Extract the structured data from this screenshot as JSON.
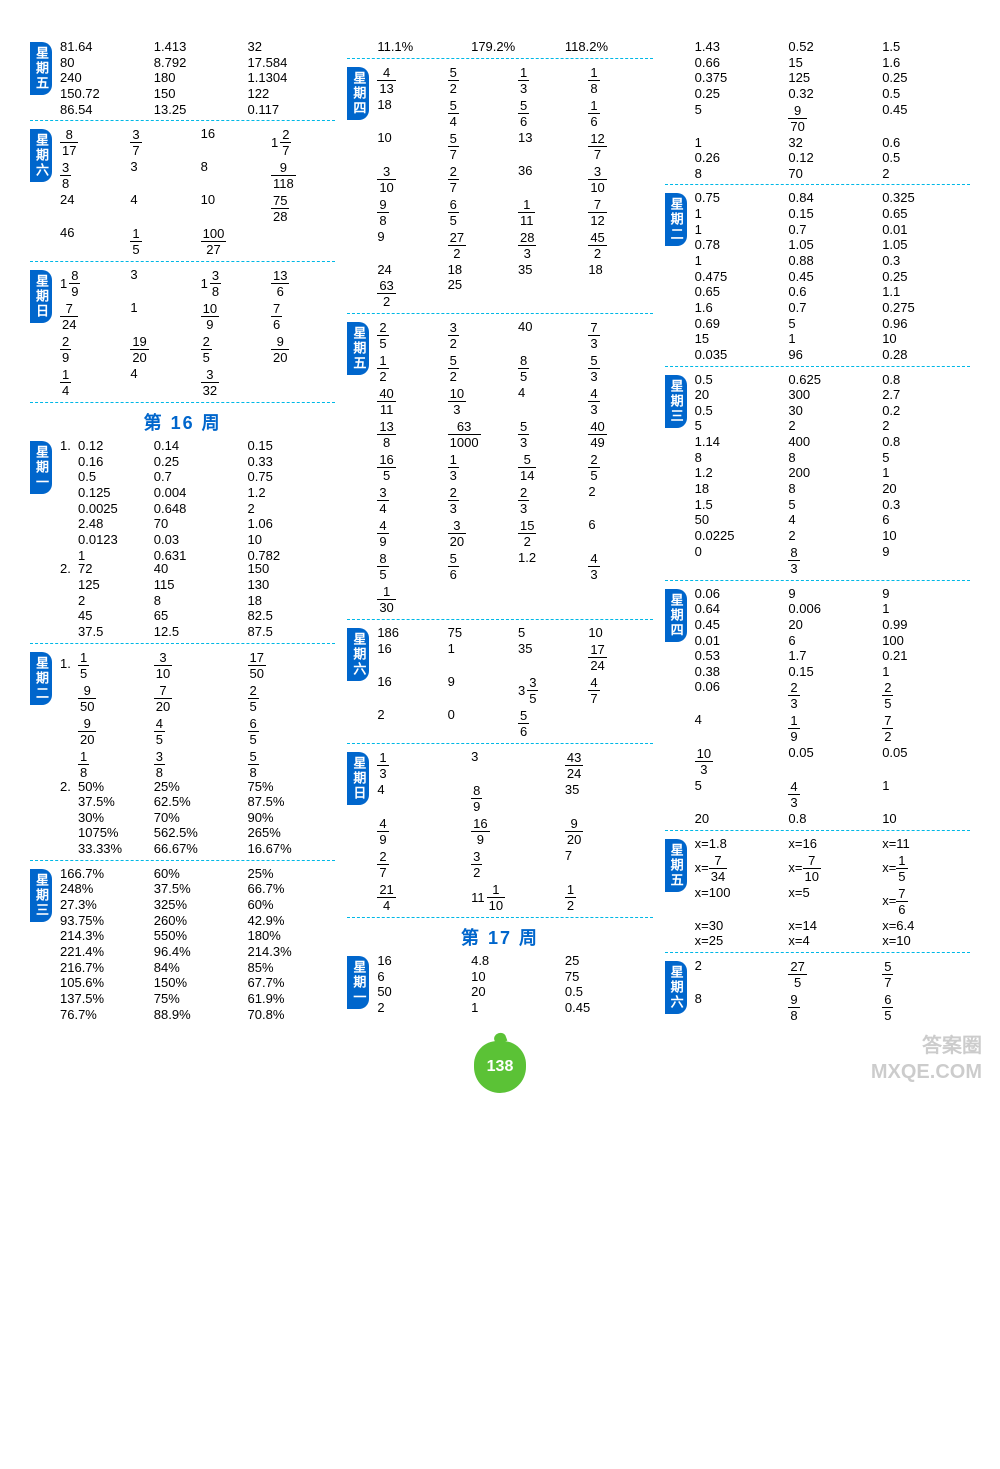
{
  "page_number": "138",
  "watermark": {
    "line1": "答案圈",
    "line2": "MXQE.COM"
  },
  "week16_title": "第 16 周",
  "week17_title": "第 17 周",
  "colors": {
    "tab_bg": "#0066cc",
    "divider": "#00b8e6",
    "week_header": "#0066cc",
    "apple": "#5bc236"
  },
  "col1": {
    "s1": {
      "day": "星期五",
      "rows": [
        [
          "81.64",
          "1.413",
          "32"
        ],
        [
          "80",
          "8.792",
          "17.584"
        ],
        [
          "240",
          "180",
          "1.1304"
        ],
        [
          "150.72",
          "150",
          "122"
        ],
        [
          "86.54",
          "13.25",
          "0.117"
        ]
      ]
    },
    "s2": {
      "day": "星期六",
      "rows": [
        [
          {
            "f": "8/17"
          },
          {
            "f": "3/7"
          },
          "16",
          {
            "m": "1",
            "f": "2/7"
          }
        ],
        [
          {
            "f": "3/8"
          },
          "3",
          "8",
          {
            "f": "9/118"
          }
        ],
        [
          "24",
          "4",
          "10",
          {
            "f": "75/28"
          }
        ],
        [
          "46",
          {
            "f": "1/5"
          },
          {
            "f": "100/27"
          },
          ""
        ]
      ]
    },
    "s3": {
      "day": "星期日",
      "rows": [
        [
          {
            "m": "1",
            "f": "8/9"
          },
          "3",
          {
            "m": "1",
            "f": "3/8"
          },
          {
            "f": "13/6"
          }
        ],
        [
          {
            "f": "7/24"
          },
          "1",
          {
            "f": "10/9"
          },
          {
            "f": "7/6"
          }
        ],
        [
          {
            "f": "2/9"
          },
          {
            "f": "19/20"
          },
          {
            "f": "2/5"
          },
          {
            "f": "9/20"
          }
        ],
        [
          {
            "f": "1/4"
          },
          "4",
          {
            "f": "3/32"
          },
          ""
        ]
      ]
    },
    "s4": {
      "day": "星期一",
      "pfx1": "1.",
      "rows1": [
        [
          "0.12",
          "0.14",
          "0.15"
        ],
        [
          "0.16",
          "0.25",
          "0.33"
        ],
        [
          "0.5",
          "0.7",
          "0.75"
        ],
        [
          "0.125",
          "0.004",
          "1.2"
        ],
        [
          "0.0025",
          "0.648",
          "2"
        ],
        [
          "2.48",
          "70",
          "1.06"
        ],
        [
          "0.0123",
          "0.03",
          "10"
        ],
        [
          "1",
          "0.631",
          "0.782"
        ]
      ],
      "pfx2": "2.",
      "rows2": [
        [
          "72",
          "40",
          "150"
        ],
        [
          "125",
          "115",
          "130"
        ],
        [
          "2",
          "8",
          "18"
        ],
        [
          "45",
          "65",
          "82.5"
        ],
        [
          "37.5",
          "12.5",
          "87.5"
        ]
      ]
    },
    "s5": {
      "day": "星期二",
      "pfx1": "1.",
      "rows1": [
        [
          {
            "f": "1/5"
          },
          {
            "f": "3/10"
          },
          {
            "f": "17/50"
          }
        ],
        [
          {
            "f": "9/50"
          },
          {
            "f": "7/20"
          },
          {
            "f": "2/5"
          }
        ],
        [
          {
            "f": "9/20"
          },
          {
            "f": "4/5"
          },
          {
            "f": "6/5"
          }
        ],
        [
          {
            "f": "1/8"
          },
          {
            "f": "3/8"
          },
          {
            "f": "5/8"
          }
        ]
      ],
      "pfx2": "2.",
      "rows2": [
        [
          "50%",
          "25%",
          "75%"
        ],
        [
          "37.5%",
          "62.5%",
          "87.5%"
        ],
        [
          "30%",
          "70%",
          "90%"
        ],
        [
          "1075%",
          "562.5%",
          "265%"
        ],
        [
          "33.33%",
          "66.67%",
          "16.67%"
        ]
      ]
    },
    "s6": {
      "day": "星期三",
      "rows": [
        [
          "166.7%",
          "60%",
          "25%"
        ],
        [
          "248%",
          "37.5%",
          "66.7%"
        ],
        [
          "27.3%",
          "325%",
          "60%"
        ],
        [
          "93.75%",
          "260%",
          "42.9%"
        ],
        [
          "214.3%",
          "550%",
          "180%"
        ],
        [
          "221.4%",
          "96.4%",
          "214.3%"
        ],
        [
          "216.7%",
          "84%",
          "85%"
        ],
        [
          "105.6%",
          "150%",
          "67.7%"
        ],
        [
          "137.5%",
          "75%",
          "61.9%"
        ],
        [
          "76.7%",
          "88.9%",
          "70.8%"
        ]
      ]
    }
  },
  "col2": {
    "s0": {
      "rows": [
        [
          "11.1%",
          "179.2%",
          "118.2%"
        ]
      ]
    },
    "s1": {
      "day": "星期四",
      "rows": [
        [
          {
            "f": "4/13"
          },
          {
            "f": "5/2"
          },
          {
            "f": "1/3"
          },
          {
            "f": "1/8"
          }
        ],
        [
          "18",
          {
            "f": "5/4"
          },
          {
            "f": "5/6"
          },
          {
            "f": "1/6"
          }
        ],
        [
          "10",
          {
            "f": "5/7"
          },
          "13",
          {
            "f": "12/7"
          }
        ],
        [
          {
            "f": "3/10"
          },
          {
            "f": "2/7"
          },
          "36",
          {
            "f": "3/10"
          }
        ],
        [
          {
            "f": "9/8"
          },
          {
            "f": "6/5"
          },
          {
            "f": "1/11"
          },
          {
            "f": "7/12"
          }
        ],
        [
          "9",
          {
            "f": "27/2"
          },
          {
            "f": "28/3"
          },
          {
            "f": "45/2"
          }
        ],
        [
          "24",
          "18",
          "35",
          "18"
        ],
        [
          {
            "f": "63/2"
          },
          "25",
          "",
          ""
        ]
      ]
    },
    "s2": {
      "day": "星期五",
      "rows": [
        [
          {
            "f": "2/5"
          },
          {
            "f": "3/2"
          },
          "40",
          {
            "f": "7/3"
          }
        ],
        [
          {
            "f": "1/2"
          },
          {
            "f": "5/2"
          },
          {
            "f": "8/5"
          },
          {
            "f": "5/3"
          }
        ],
        [
          {
            "f": "40/11"
          },
          {
            "f": "10/3"
          },
          "4",
          {
            "f": "4/3"
          }
        ],
        [
          {
            "f": "13/8"
          },
          {
            "f": "63/1000"
          },
          {
            "f": "5/3"
          },
          {
            "f": "40/49"
          }
        ],
        [
          {
            "f": "16/5"
          },
          {
            "f": "1/3"
          },
          {
            "f": "5/14"
          },
          {
            "f": "2/5"
          }
        ],
        [
          {
            "f": "3/4"
          },
          {
            "f": "2/3"
          },
          {
            "f": "2/3"
          },
          "2"
        ],
        [
          {
            "f": "4/9"
          },
          {
            "f": "3/20"
          },
          {
            "f": "15/2"
          },
          "6"
        ],
        [
          {
            "f": "8/5"
          },
          {
            "f": "5/6"
          },
          "1.2",
          {
            "f": "4/3"
          }
        ],
        [
          {
            "f": "1/30"
          },
          "",
          "",
          ""
        ]
      ]
    },
    "s3": {
      "day": "星期六",
      "rows": [
        [
          "186",
          "75",
          "5",
          "10"
        ],
        [
          "16",
          "1",
          "35",
          {
            "f": "17/24"
          }
        ],
        [
          "16",
          "9",
          {
            "m": "3",
            "f": "3/5"
          },
          {
            "f": "4/7"
          }
        ],
        [
          "2",
          "0",
          {
            "f": "5/6"
          },
          ""
        ]
      ]
    },
    "s4": {
      "day": "星期日",
      "rows": [
        [
          {
            "f": "1/3"
          },
          "3",
          {
            "f": "43/24"
          }
        ],
        [
          "4",
          {
            "f": "8/9"
          },
          "35"
        ],
        [
          {
            "f": "4/9"
          },
          {
            "f": "16/9"
          },
          {
            "f": "9/20"
          }
        ],
        [
          {
            "f": "2/7"
          },
          {
            "f": "3/2"
          },
          "7"
        ],
        [
          {
            "f": "21/4"
          },
          {
            "m": "11",
            "f": "1/10"
          },
          {
            "f": "1/2"
          }
        ]
      ]
    },
    "s5": {
      "day": "星期一",
      "rows": [
        [
          "16",
          "4.8",
          "25"
        ],
        [
          "6",
          "10",
          "75"
        ],
        [
          "50",
          "20",
          "0.5"
        ],
        [
          "2",
          "1",
          "0.45"
        ]
      ]
    }
  },
  "col3": {
    "s0": {
      "rows": [
        [
          "1.43",
          "0.52",
          "1.5"
        ],
        [
          "0.66",
          "15",
          "1.6"
        ],
        [
          "0.375",
          "125",
          "0.25"
        ],
        [
          "0.25",
          "0.32",
          "0.5"
        ],
        [
          "5",
          {
            "f": "9/70"
          },
          "0.45"
        ],
        [
          "1",
          "32",
          "0.6"
        ],
        [
          "0.26",
          "0.12",
          "0.5"
        ],
        [
          "8",
          "70",
          "2"
        ]
      ]
    },
    "s1": {
      "day": "星期二",
      "rows": [
        [
          "0.75",
          "0.84",
          "0.325"
        ],
        [
          "1",
          "0.15",
          "0.65"
        ],
        [
          "1",
          "0.7",
          "0.01"
        ],
        [
          "0.78",
          "1.05",
          "1.05"
        ],
        [
          "1",
          "0.88",
          "0.3"
        ],
        [
          "0.475",
          "0.45",
          "0.25"
        ],
        [
          "0.65",
          "0.6",
          "1.1"
        ],
        [
          "1.6",
          "0.7",
          "0.275"
        ],
        [
          "0.69",
          "5",
          "0.96"
        ],
        [
          "15",
          "1",
          "10"
        ],
        [
          "0.035",
          "96",
          "0.28"
        ]
      ]
    },
    "s2": {
      "day": "星期三",
      "rows": [
        [
          "0.5",
          "0.625",
          "0.8"
        ],
        [
          "20",
          "300",
          "2.7"
        ],
        [
          "0.5",
          "30",
          "0.2"
        ],
        [
          "5",
          "2",
          "2"
        ],
        [
          "1.14",
          "400",
          "0.8"
        ],
        [
          "8",
          "8",
          "5"
        ],
        [
          "1.2",
          "200",
          "1"
        ],
        [
          "18",
          "8",
          "20"
        ],
        [
          "1.5",
          "5",
          "0.3"
        ],
        [
          "50",
          "4",
          "6"
        ],
        [
          "0.0225",
          "2",
          "10"
        ],
        [
          "0",
          {
            "f": "8/3"
          },
          "9"
        ]
      ]
    },
    "s3": {
      "day": "星期四",
      "rows": [
        [
          "0.06",
          "9",
          "9"
        ],
        [
          "0.64",
          "0.006",
          "1"
        ],
        [
          "0.45",
          "20",
          "0.99"
        ],
        [
          "0.01",
          "6",
          "100"
        ],
        [
          "0.53",
          "1.7",
          "0.21"
        ],
        [
          "0.38",
          "0.15",
          "1"
        ],
        [
          "0.06",
          {
            "f": "2/3"
          },
          {
            "f": "2/5"
          }
        ],
        [
          "4",
          {
            "f": "1/9"
          },
          {
            "f": "7/2"
          }
        ],
        [
          {
            "f": "10/3"
          },
          "0.05",
          "0.05"
        ],
        [
          "5",
          {
            "f": "4/3"
          },
          "1"
        ],
        [
          "20",
          "0.8",
          "10"
        ]
      ]
    },
    "s4": {
      "day": "星期五",
      "rows": [
        [
          "x=1.8",
          "x=16",
          "x=11"
        ],
        [
          {
            "eq": "x=",
            "f": "7/34"
          },
          {
            "eq": "x=",
            "f": "7/10"
          },
          {
            "eq": "x=",
            "f": "1/5"
          }
        ],
        [
          "x=100",
          "x=5",
          {
            "eq": "x=",
            "f": "7/6"
          }
        ],
        [
          "x=30",
          "x=14",
          "x=6.4"
        ],
        [
          "x=25",
          "x=4",
          "x=10"
        ]
      ]
    },
    "s5": {
      "day": "星期六",
      "rows": [
        [
          "2",
          {
            "f": "27/5"
          },
          {
            "f": "5/7"
          }
        ],
        [
          "8",
          {
            "f": "9/8"
          },
          {
            "f": "6/5"
          }
        ]
      ]
    }
  }
}
